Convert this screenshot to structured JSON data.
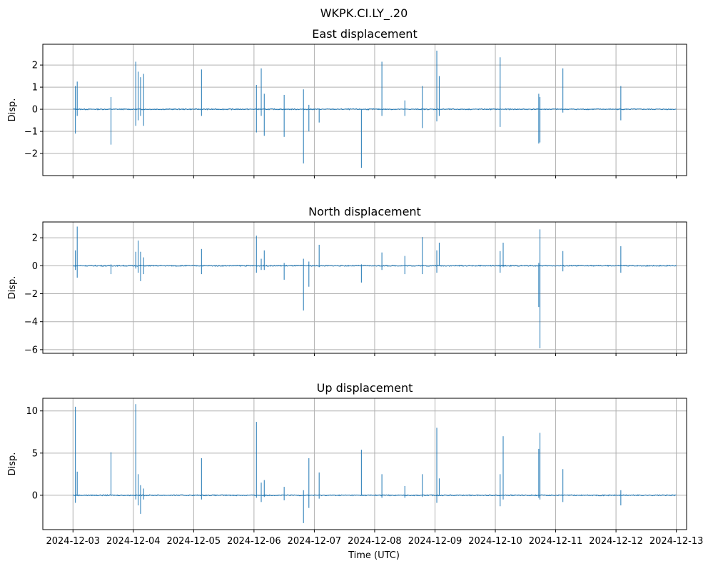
{
  "chart_data": {
    "type": "line",
    "title": "WKPK.CI.LY_.20",
    "xlabel": "Time (UTC)",
    "x_ticks": [
      "2024-12-03",
      "2024-12-04",
      "2024-12-05",
      "2024-12-06",
      "2024-12-07",
      "2024-12-08",
      "2024-12-09",
      "2024-12-10",
      "2024-12-11",
      "2024-12-12",
      "2024-12-13"
    ],
    "x_unit": "days since 2024-12-03",
    "xlim": [
      -0.5,
      10.17
    ],
    "grid": true,
    "color": "#1f77b4",
    "panels": [
      {
        "title": "East displacement",
        "ylabel": "Disp.",
        "ylim": [
          -3.0,
          2.94
        ],
        "yticks": [
          -2,
          -1,
          0,
          1,
          2
        ],
        "ytick_labels": [
          "−2",
          "−1",
          "0",
          "1",
          "2"
        ],
        "spikes": [
          [
            0.04,
            1.05,
            -1.1
          ],
          [
            0.07,
            1.25,
            -0.3
          ],
          [
            0.63,
            0.55,
            -1.6
          ],
          [
            1.04,
            2.15,
            -0.75
          ],
          [
            1.08,
            1.7,
            -0.5
          ],
          [
            1.12,
            1.45,
            -0.3
          ],
          [
            1.17,
            1.6,
            -0.75
          ],
          [
            2.13,
            1.8,
            -0.3
          ],
          [
            3.04,
            1.1,
            -1.05
          ],
          [
            3.12,
            1.85,
            -0.3
          ],
          [
            3.17,
            0.7,
            -1.2
          ],
          [
            3.5,
            0.65,
            -1.25
          ],
          [
            3.82,
            0.9,
            -2.45
          ],
          [
            3.91,
            0.2,
            -1.0
          ],
          [
            4.08,
            0,
            -0.6
          ],
          [
            4.78,
            0,
            -2.65
          ],
          [
            5.12,
            2.15,
            -0.3
          ],
          [
            5.5,
            0.4,
            -0.3
          ],
          [
            5.79,
            1.05,
            -0.85
          ],
          [
            6.03,
            2.65,
            -0.55
          ],
          [
            6.07,
            1.5,
            -0.3
          ],
          [
            7.08,
            2.35,
            -0.8
          ],
          [
            7.72,
            0.7,
            -1.55
          ],
          [
            7.74,
            0.55,
            -1.5
          ],
          [
            8.12,
            1.85,
            -0.15
          ],
          [
            9.08,
            1.05,
            -0.5
          ]
        ]
      },
      {
        "title": "North displacement",
        "ylabel": "Disp.",
        "ylim": [
          -6.26,
          3.13
        ],
        "yticks": [
          -6,
          -4,
          -2,
          0,
          2
        ],
        "ytick_labels": [
          "−6",
          "−4",
          "−2",
          "0",
          "2"
        ],
        "spikes": [
          [
            0.04,
            1.1,
            -0.3
          ],
          [
            0.07,
            2.8,
            -0.85
          ],
          [
            0.63,
            0.1,
            -0.6
          ],
          [
            1.04,
            1.0,
            -0.2
          ],
          [
            1.08,
            1.8,
            -0.5
          ],
          [
            1.12,
            1.0,
            -1.1
          ],
          [
            1.17,
            0.6,
            -0.6
          ],
          [
            2.13,
            1.2,
            -0.6
          ],
          [
            3.04,
            2.15,
            -0.5
          ],
          [
            3.12,
            0.5,
            -0.3
          ],
          [
            3.17,
            1.1,
            -0.3
          ],
          [
            3.5,
            0.2,
            -1.0
          ],
          [
            3.82,
            0.5,
            -3.2
          ],
          [
            3.91,
            0.3,
            -1.5
          ],
          [
            4.08,
            1.5,
            -0.1
          ],
          [
            4.78,
            0.1,
            -1.2
          ],
          [
            5.12,
            0.95,
            -0.3
          ],
          [
            5.5,
            0.7,
            -0.6
          ],
          [
            5.79,
            2.05,
            -0.6
          ],
          [
            6.03,
            1.1,
            -0.5
          ],
          [
            6.07,
            1.65,
            0
          ],
          [
            7.08,
            1.05,
            -0.5
          ],
          [
            7.13,
            1.65,
            -0.1
          ],
          [
            7.72,
            0.2,
            -2.95
          ],
          [
            7.74,
            2.6,
            -5.9
          ],
          [
            8.12,
            1.05,
            -0.4
          ],
          [
            9.08,
            1.4,
            -0.5
          ]
        ]
      },
      {
        "title": "Up displacement",
        "ylabel": "Disp.",
        "ylim": [
          -4.07,
          11.5
        ],
        "yticks": [
          0,
          5,
          10
        ],
        "ytick_labels": [
          "0",
          "5",
          "10"
        ],
        "spikes": [
          [
            0.04,
            10.5,
            -0.9
          ],
          [
            0.07,
            2.8,
            0
          ],
          [
            0.63,
            5.1,
            0
          ],
          [
            1.04,
            10.8,
            -0.5
          ],
          [
            1.08,
            2.5,
            -1.2
          ],
          [
            1.12,
            1.2,
            -2.2
          ],
          [
            1.17,
            0.8,
            -0.5
          ],
          [
            2.13,
            4.4,
            -0.5
          ],
          [
            3.04,
            8.7,
            -0.3
          ],
          [
            3.12,
            1.5,
            -0.8
          ],
          [
            3.17,
            1.8,
            -0.2
          ],
          [
            3.5,
            1.0,
            -0.6
          ],
          [
            3.82,
            0.6,
            -3.3
          ],
          [
            3.91,
            4.4,
            -1.5
          ],
          [
            4.08,
            2.7,
            -0.4
          ],
          [
            4.78,
            5.4,
            0
          ],
          [
            5.12,
            2.5,
            -0.3
          ],
          [
            5.5,
            1.1,
            -0.3
          ],
          [
            5.79,
            2.5,
            -0.2
          ],
          [
            6.03,
            8.0,
            -0.9
          ],
          [
            6.07,
            2.0,
            0
          ],
          [
            7.08,
            2.5,
            -1.3
          ],
          [
            7.13,
            7.0,
            -0.5
          ],
          [
            7.72,
            5.5,
            -0.3
          ],
          [
            7.74,
            7.4,
            -0.5
          ],
          [
            8.12,
            3.1,
            -0.8
          ],
          [
            9.08,
            0.6,
            -1.2
          ]
        ]
      }
    ]
  }
}
